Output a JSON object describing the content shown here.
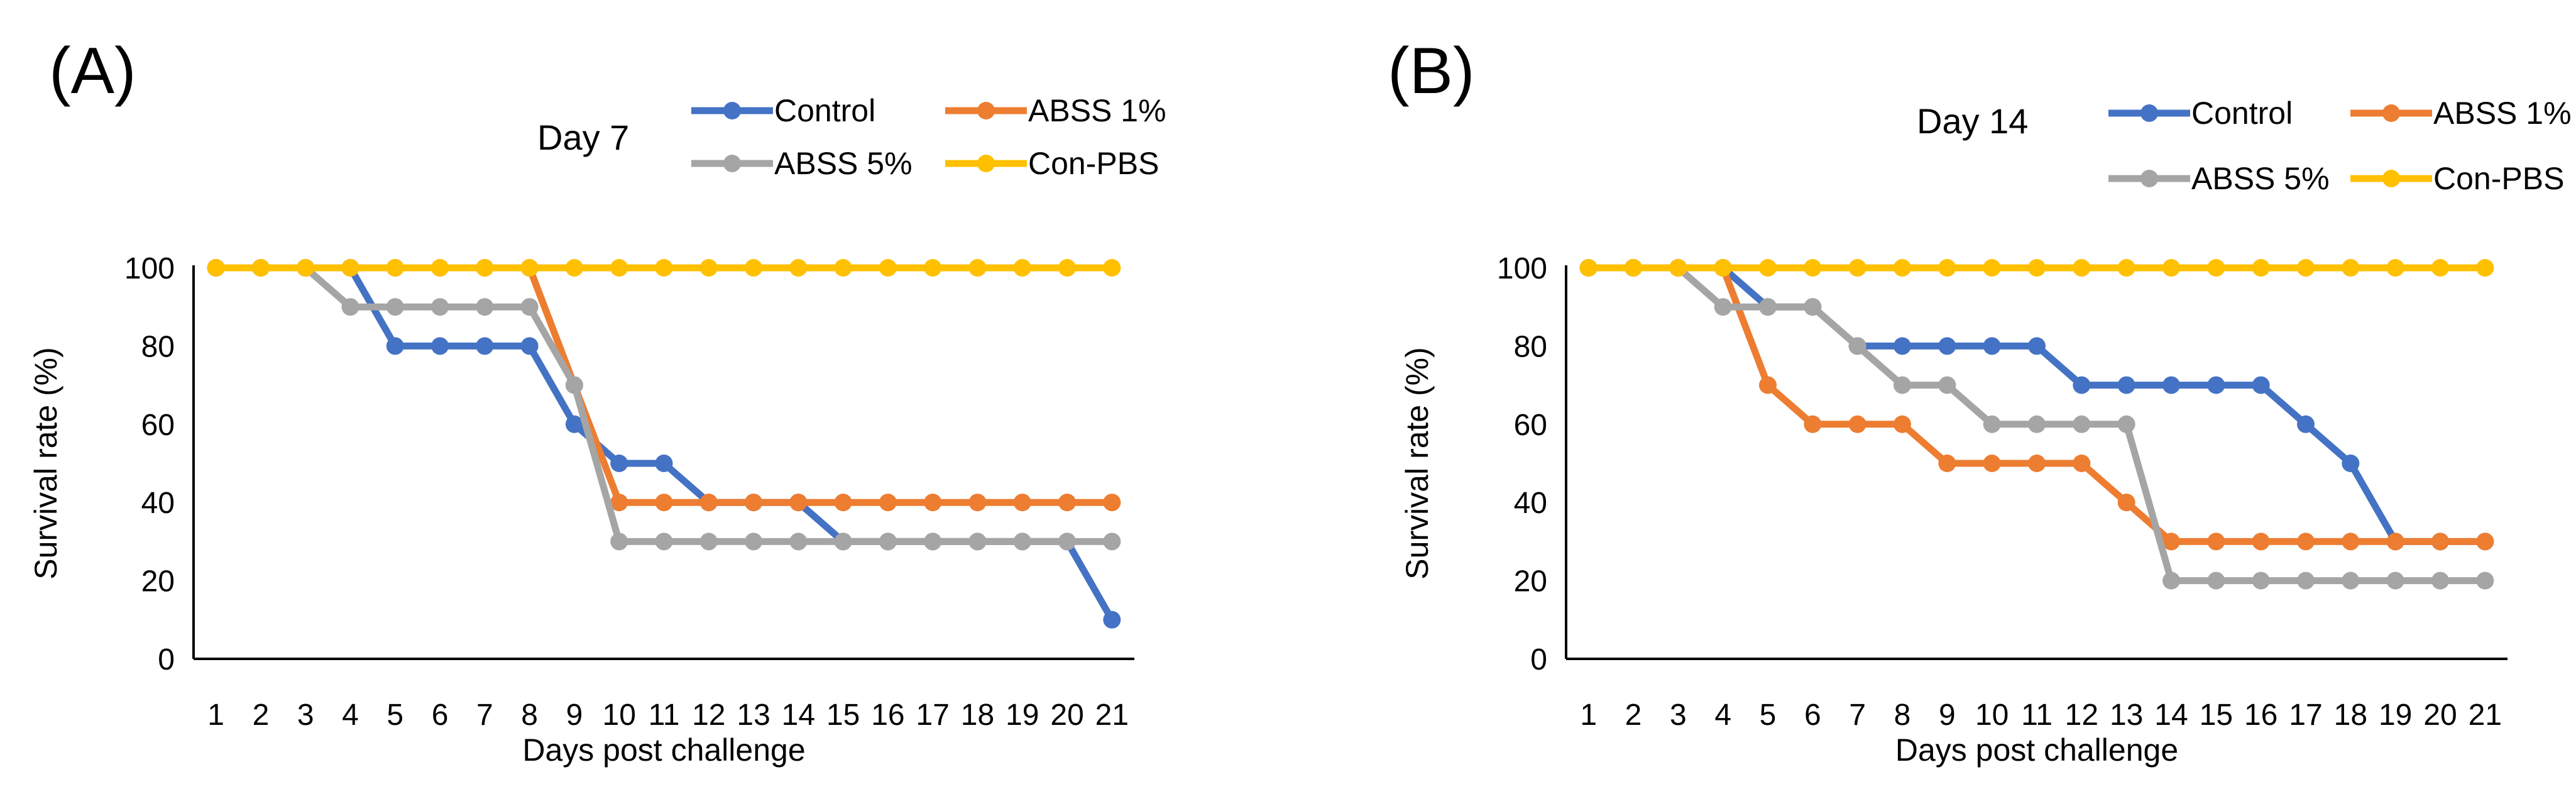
{
  "chart_data": [
    {
      "type": "line",
      "panel_label": "(A)",
      "title": "Day 7",
      "xlabel": "Days post challenge",
      "ylabel": "Survival rate (%)",
      "ylim": [
        0,
        100
      ],
      "yticks": [
        0,
        20,
        40,
        60,
        80,
        100
      ],
      "categories": [
        "1",
        "2",
        "3",
        "4",
        "5",
        "6",
        "7",
        "8",
        "9",
        "10",
        "11",
        "12",
        "13",
        "14",
        "15",
        "16",
        "17",
        "18",
        "19",
        "20",
        "21"
      ],
      "legend_position": "top-right",
      "series": [
        {
          "name": "Control",
          "color": "#4472C4",
          "values": [
            100,
            100,
            100,
            100,
            80,
            80,
            80,
            80,
            60,
            50,
            50,
            40,
            40,
            40,
            30,
            30,
            30,
            30,
            30,
            30,
            10
          ]
        },
        {
          "name": "ABSS 1%",
          "color": "#ED7D31",
          "values": [
            100,
            100,
            100,
            100,
            100,
            100,
            100,
            100,
            70,
            40,
            40,
            40,
            40,
            40,
            40,
            40,
            40,
            40,
            40,
            40,
            40
          ]
        },
        {
          "name": "ABSS 5%",
          "color": "#A5A5A5",
          "values": [
            100,
            100,
            100,
            90,
            90,
            90,
            90,
            90,
            70,
            30,
            30,
            30,
            30,
            30,
            30,
            30,
            30,
            30,
            30,
            30,
            30
          ]
        },
        {
          "name": "Con-PBS",
          "color": "#FFC000",
          "values": [
            100,
            100,
            100,
            100,
            100,
            100,
            100,
            100,
            100,
            100,
            100,
            100,
            100,
            100,
            100,
            100,
            100,
            100,
            100,
            100,
            100
          ]
        }
      ]
    },
    {
      "type": "line",
      "panel_label": "(B)",
      "title": "Day 14",
      "xlabel": "Days post challenge",
      "ylabel": "Survival rate (%)",
      "ylim": [
        0,
        100
      ],
      "yticks": [
        0,
        20,
        40,
        60,
        80,
        100
      ],
      "categories": [
        "1",
        "2",
        "3",
        "4",
        "5",
        "6",
        "7",
        "8",
        "9",
        "10",
        "11",
        "12",
        "13",
        "14",
        "15",
        "16",
        "17",
        "18",
        "19",
        "20",
        "21"
      ],
      "legend_position": "top-right",
      "series": [
        {
          "name": "Control",
          "color": "#4472C4",
          "values": [
            100,
            100,
            100,
            100,
            90,
            90,
            80,
            80,
            80,
            80,
            80,
            70,
            70,
            70,
            70,
            70,
            60,
            50,
            30,
            30,
            30
          ]
        },
        {
          "name": "ABSS 1%",
          "color": "#ED7D31",
          "values": [
            100,
            100,
            100,
            100,
            70,
            60,
            60,
            60,
            50,
            50,
            50,
            50,
            40,
            30,
            30,
            30,
            30,
            30,
            30,
            30,
            30
          ]
        },
        {
          "name": "ABSS 5%",
          "color": "#A5A5A5",
          "values": [
            100,
            100,
            100,
            90,
            90,
            90,
            80,
            70,
            70,
            60,
            60,
            60,
            60,
            20,
            20,
            20,
            20,
            20,
            20,
            20,
            20
          ]
        },
        {
          "name": "Con-PBS",
          "color": "#FFC000",
          "values": [
            100,
            100,
            100,
            100,
            100,
            100,
            100,
            100,
            100,
            100,
            100,
            100,
            100,
            100,
            100,
            100,
            100,
            100,
            100,
            100,
            100
          ]
        }
      ]
    }
  ]
}
